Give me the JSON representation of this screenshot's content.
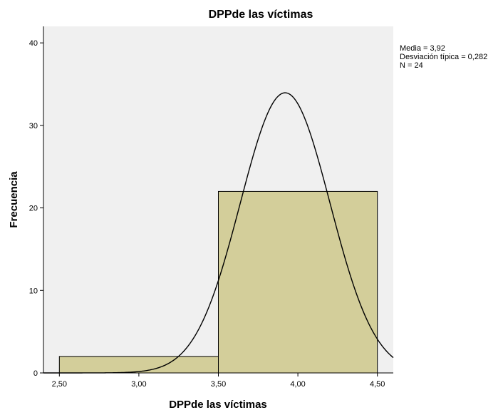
{
  "chart_data": {
    "type": "bar",
    "title": "DPPde las víctimas",
    "xlabel": "DPPde las víctimas",
    "ylabel": "Frecuencia",
    "xlim": [
      2.4,
      4.6
    ],
    "ylim": [
      0,
      42
    ],
    "x_ticks": [
      {
        "value": 2.5,
        "label": "2,50"
      },
      {
        "value": 3.0,
        "label": "3,00"
      },
      {
        "value": 3.5,
        "label": "3,50"
      },
      {
        "value": 4.0,
        "label": "4,00"
      },
      {
        "value": 4.5,
        "label": "4,50"
      }
    ],
    "y_ticks": [
      {
        "value": 0,
        "label": "0"
      },
      {
        "value": 10,
        "label": "10"
      },
      {
        "value": 20,
        "label": "20"
      },
      {
        "value": 30,
        "label": "30"
      },
      {
        "value": 40,
        "label": "40"
      }
    ],
    "bins": [
      {
        "start": 2.5,
        "end": 3.5,
        "count": 2
      },
      {
        "start": 3.5,
        "end": 4.5,
        "count": 22
      }
    ],
    "normal_curve": {
      "mean": 3.92,
      "std": 0.282,
      "n": 24,
      "bin_width": 1.0
    },
    "stats": [
      "Media = 3,92",
      "Desviación típica = 0,282",
      "N = 24"
    ],
    "grid": false,
    "colors": {
      "plot_background": "#f0f0f0",
      "bar_fill": "#d3ce9a",
      "bar_stroke": "#000000",
      "curve": "#000000"
    }
  }
}
